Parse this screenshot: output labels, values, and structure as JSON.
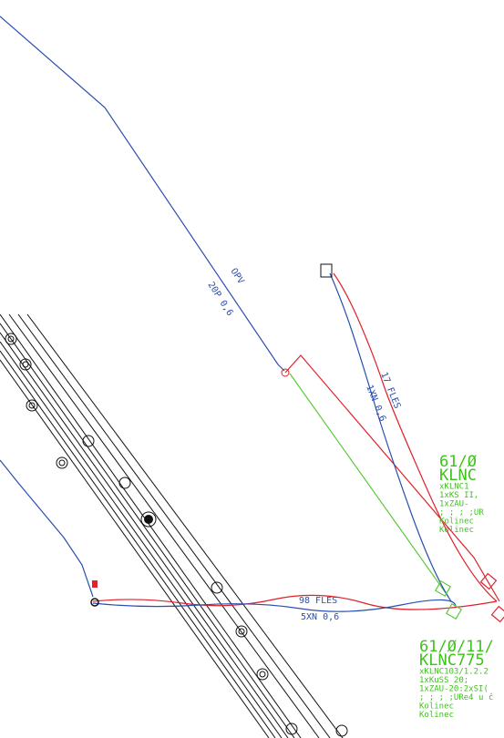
{
  "labels": {
    "line_opv": "OPV",
    "line_opv_spec": "20P 0,6",
    "line_17": "17 FLES",
    "line_17_spec": "1XN 0,6",
    "line_98": "98 FLES",
    "line_98_spec": "5XN 0,6"
  },
  "blocks": [
    {
      "lines": [
        "61/Ø",
        "KLNC",
        "xKLNC1",
        "1xKS II,",
        "1xZAU-",
        "; ; ; ;UR",
        "Kolinec",
        "Kolinec"
      ]
    },
    {
      "lines": [
        "61/Ø/11/",
        "KLNC775",
        "xKLNC103/1.2.2",
        "1xKuSS 20;",
        "1xZAU-20:2xSI(",
        "; ; ; ;URe4 u č",
        "Kolinec",
        "Kolinec"
      ]
    }
  ]
}
